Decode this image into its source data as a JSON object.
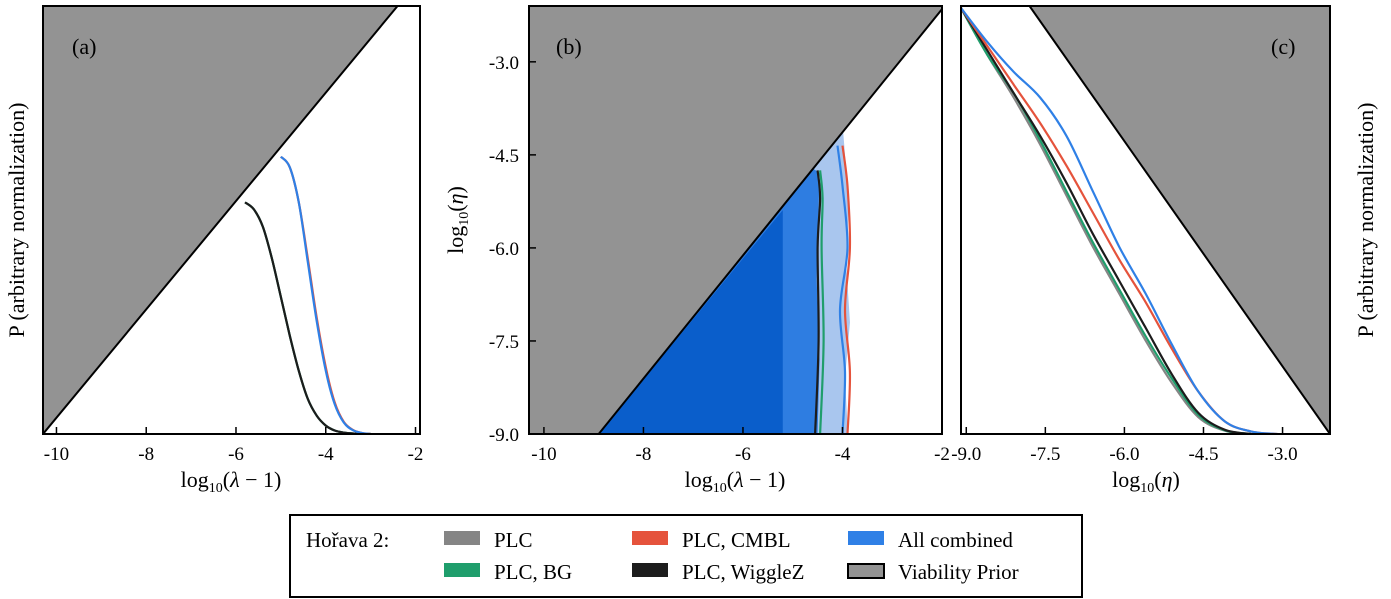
{
  "colors": {
    "prior_fill": "#939393",
    "plc": "#858585",
    "plc_bg": "#1f9e6c",
    "plc_cmbl": "#e5533c",
    "plc_wigglez": "#1c1c1c",
    "all_combined": "#2f80e6",
    "contour_dark": "#0a5ecb",
    "contour_mid": "#2e7de1",
    "contour_light": "#a9c6ee"
  },
  "chart_data": [
    {
      "type": "line",
      "panel_label": "(a)",
      "xlabel": "log10(λ − 1)",
      "ylabel": "P (arbitrary normalization)",
      "xlim": [
        -10.3,
        -1.9
      ],
      "xticks": [
        -10,
        -8,
        -6,
        -4,
        -2
      ],
      "viability_prior_boundary": {
        "x": [
          -10.3,
          -2.4
        ],
        "y_frac": [
          0.0,
          1.0
        ]
      },
      "series": [
        {
          "name": "PLC",
          "color_key": "plc",
          "x": [
            -5.8,
            -5.6,
            -5.4,
            -5.2,
            -5.0,
            -4.8,
            -4.6,
            -4.4,
            -4.2,
            -4.0,
            -3.8,
            -3.6,
            -3.4,
            -3.2,
            -3.0
          ],
          "y": [
            0.66,
            0.64,
            0.59,
            0.5,
            0.39,
            0.28,
            0.18,
            0.1,
            0.052,
            0.024,
            0.01,
            0.004,
            0.0015,
            0.0004,
            0.0
          ]
        },
        {
          "name": "PLC, BG",
          "color_key": "plc_bg",
          "x": [
            -5.8,
            -5.6,
            -5.4,
            -5.2,
            -5.0,
            -4.8,
            -4.6,
            -4.4,
            -4.2,
            -4.0,
            -3.8,
            -3.6,
            -3.4,
            -3.2,
            -3.0
          ],
          "y": [
            0.66,
            0.64,
            0.59,
            0.5,
            0.39,
            0.28,
            0.18,
            0.1,
            0.052,
            0.024,
            0.01,
            0.004,
            0.0015,
            0.0004,
            0.0
          ]
        },
        {
          "name": "PLC, WiggleZ",
          "color_key": "plc_wigglez",
          "x": [
            -5.8,
            -5.6,
            -5.4,
            -5.2,
            -5.0,
            -4.8,
            -4.6,
            -4.4,
            -4.2,
            -4.0,
            -3.8,
            -3.6,
            -3.4,
            -3.2,
            -3.0
          ],
          "y": [
            0.66,
            0.64,
            0.59,
            0.5,
            0.39,
            0.28,
            0.18,
            0.1,
            0.052,
            0.024,
            0.01,
            0.004,
            0.0015,
            0.0004,
            0.0
          ]
        },
        {
          "name": "PLC, CMBL",
          "color_key": "plc_cmbl",
          "x": [
            -5.0,
            -4.8,
            -4.6,
            -4.4,
            -4.2,
            -4.0,
            -3.8,
            -3.6,
            -3.4,
            -3.2,
            -3.0
          ],
          "y": [
            0.79,
            0.76,
            0.66,
            0.5,
            0.33,
            0.19,
            0.09,
            0.035,
            0.012,
            0.003,
            0.0
          ]
        },
        {
          "name": "All combined",
          "color_key": "all_combined",
          "x": [
            -5.0,
            -4.8,
            -4.6,
            -4.4,
            -4.2,
            -4.0,
            -3.8,
            -3.6,
            -3.4,
            -3.2,
            -3.0
          ],
          "y": [
            0.79,
            0.76,
            0.66,
            0.49,
            0.32,
            0.18,
            0.085,
            0.033,
            0.011,
            0.003,
            0.0
          ]
        }
      ]
    },
    {
      "type": "contour",
      "panel_label": "(b)",
      "xlabel": "log10(λ − 1)",
      "ylabel": "log10(η)",
      "xlim": [
        -10.3,
        -2.0
      ],
      "ylim": [
        -9.0,
        -2.1
      ],
      "xticks": [
        -10,
        -8,
        -6,
        -4,
        -2
      ],
      "yticks": [
        -9.0,
        -7.5,
        -6.0,
        -4.5,
        -3.0
      ],
      "viability_prior_boundary": {
        "x": [
          -8.9,
          -2.0
        ],
        "y": [
          -9.0,
          -2.15
        ]
      },
      "contours": [
        {
          "level": "outer",
          "color_key": "contour_light",
          "xmax": -3.95
        },
        {
          "level": "middle",
          "color_key": "contour_mid",
          "xmax": -4.5
        },
        {
          "level": "inner",
          "color_key": "contour_dark",
          "xmax": -5.2
        }
      ],
      "lines": [
        {
          "name": "PLC, WiggleZ",
          "color_key": "plc_wigglez",
          "x": [
            -4.55,
            -4.48,
            -4.5,
            -4.45,
            -4.5
          ],
          "y": [
            -9.0,
            -7.5,
            -6.0,
            -5.2,
            -4.75
          ]
        },
        {
          "name": "PLC, BG",
          "color_key": "plc_bg",
          "x": [
            -4.45,
            -4.38,
            -4.42,
            -4.4,
            -4.45
          ],
          "y": [
            -9.0,
            -7.5,
            -6.0,
            -5.2,
            -4.75
          ]
        },
        {
          "name": "PLC, CMBL",
          "color_key": "plc_cmbl",
          "x": [
            -3.9,
            -3.85,
            -3.95,
            -3.85,
            -3.9,
            -4.0
          ],
          "y": [
            -9.0,
            -8.0,
            -7.0,
            -6.0,
            -5.0,
            -4.35
          ]
        },
        {
          "name": "All combined",
          "color_key": "all_combined",
          "x": [
            -4.0,
            -3.95,
            -4.05,
            -3.9,
            -4.0,
            -4.1
          ],
          "y": [
            -9.0,
            -8.0,
            -7.0,
            -6.0,
            -5.0,
            -4.35
          ]
        }
      ]
    },
    {
      "type": "line",
      "panel_label": "(c)",
      "xlabel": "log10(η)",
      "ylabel": "P (arbitrary normalization)",
      "xlim": [
        -9.1,
        -2.1
      ],
      "xticks": [
        -9.0,
        -7.5,
        -6.0,
        -4.5,
        -3.0
      ],
      "viability_prior_boundary": {
        "x": [
          -7.8,
          -2.1
        ],
        "y_frac": [
          1.0,
          0.0
        ]
      },
      "series": [
        {
          "name": "PLC",
          "color_key": "plc",
          "x": [
            -9.1,
            -8.6,
            -8.1,
            -7.6,
            -7.1,
            -6.6,
            -6.1,
            -5.6,
            -5.1,
            -4.6,
            -4.1,
            -3.6
          ],
          "y": [
            1.0,
            0.89,
            0.79,
            0.68,
            0.56,
            0.44,
            0.33,
            0.22,
            0.12,
            0.04,
            0.008,
            0.0
          ]
        },
        {
          "name": "PLC, BG",
          "color_key": "plc_bg",
          "x": [
            -9.1,
            -8.6,
            -8.1,
            -7.6,
            -7.1,
            -6.6,
            -6.1,
            -5.6,
            -5.1,
            -4.6,
            -4.1,
            -3.6
          ],
          "y": [
            1.0,
            0.89,
            0.8,
            0.69,
            0.57,
            0.45,
            0.34,
            0.23,
            0.13,
            0.045,
            0.009,
            0.0
          ]
        },
        {
          "name": "PLC, WiggleZ",
          "color_key": "plc_wigglez",
          "x": [
            -9.1,
            -8.6,
            -8.1,
            -7.6,
            -7.1,
            -6.6,
            -6.1,
            -5.6,
            -5.1,
            -4.6,
            -4.1,
            -3.6
          ],
          "y": [
            1.0,
            0.9,
            0.8,
            0.7,
            0.59,
            0.47,
            0.36,
            0.25,
            0.14,
            0.05,
            0.01,
            0.0
          ]
        },
        {
          "name": "PLC, CMBL",
          "color_key": "plc_cmbl",
          "x": [
            -9.1,
            -8.6,
            -8.1,
            -7.6,
            -7.1,
            -6.6,
            -6.1,
            -5.6,
            -5.1,
            -4.6,
            -4.1,
            -3.6,
            -3.1
          ],
          "y": [
            1.0,
            0.91,
            0.82,
            0.73,
            0.63,
            0.52,
            0.41,
            0.31,
            0.2,
            0.1,
            0.03,
            0.006,
            0.0
          ]
        },
        {
          "name": "All combined",
          "color_key": "all_combined",
          "x": [
            -9.1,
            -8.6,
            -8.1,
            -7.6,
            -7.1,
            -6.6,
            -6.1,
            -5.6,
            -5.1,
            -4.6,
            -4.1,
            -3.6,
            -3.1
          ],
          "y": [
            1.0,
            0.92,
            0.85,
            0.79,
            0.7,
            0.57,
            0.44,
            0.33,
            0.21,
            0.1,
            0.03,
            0.006,
            0.0
          ]
        }
      ]
    }
  ],
  "legend": {
    "title": "Hořava 2:",
    "entries": [
      {
        "label": "PLC",
        "color_key": "plc",
        "swatch": "bar"
      },
      {
        "label": "PLC, BG",
        "color_key": "plc_bg",
        "swatch": "bar"
      },
      {
        "label": "PLC, CMBL",
        "color_key": "plc_cmbl",
        "swatch": "bar"
      },
      {
        "label": "PLC, WiggleZ",
        "color_key": "plc_wigglez",
        "swatch": "bar"
      },
      {
        "label": "All combined",
        "color_key": "all_combined",
        "swatch": "bar"
      },
      {
        "label": "Viability Prior",
        "color_key": "prior_fill",
        "swatch": "box"
      }
    ]
  }
}
